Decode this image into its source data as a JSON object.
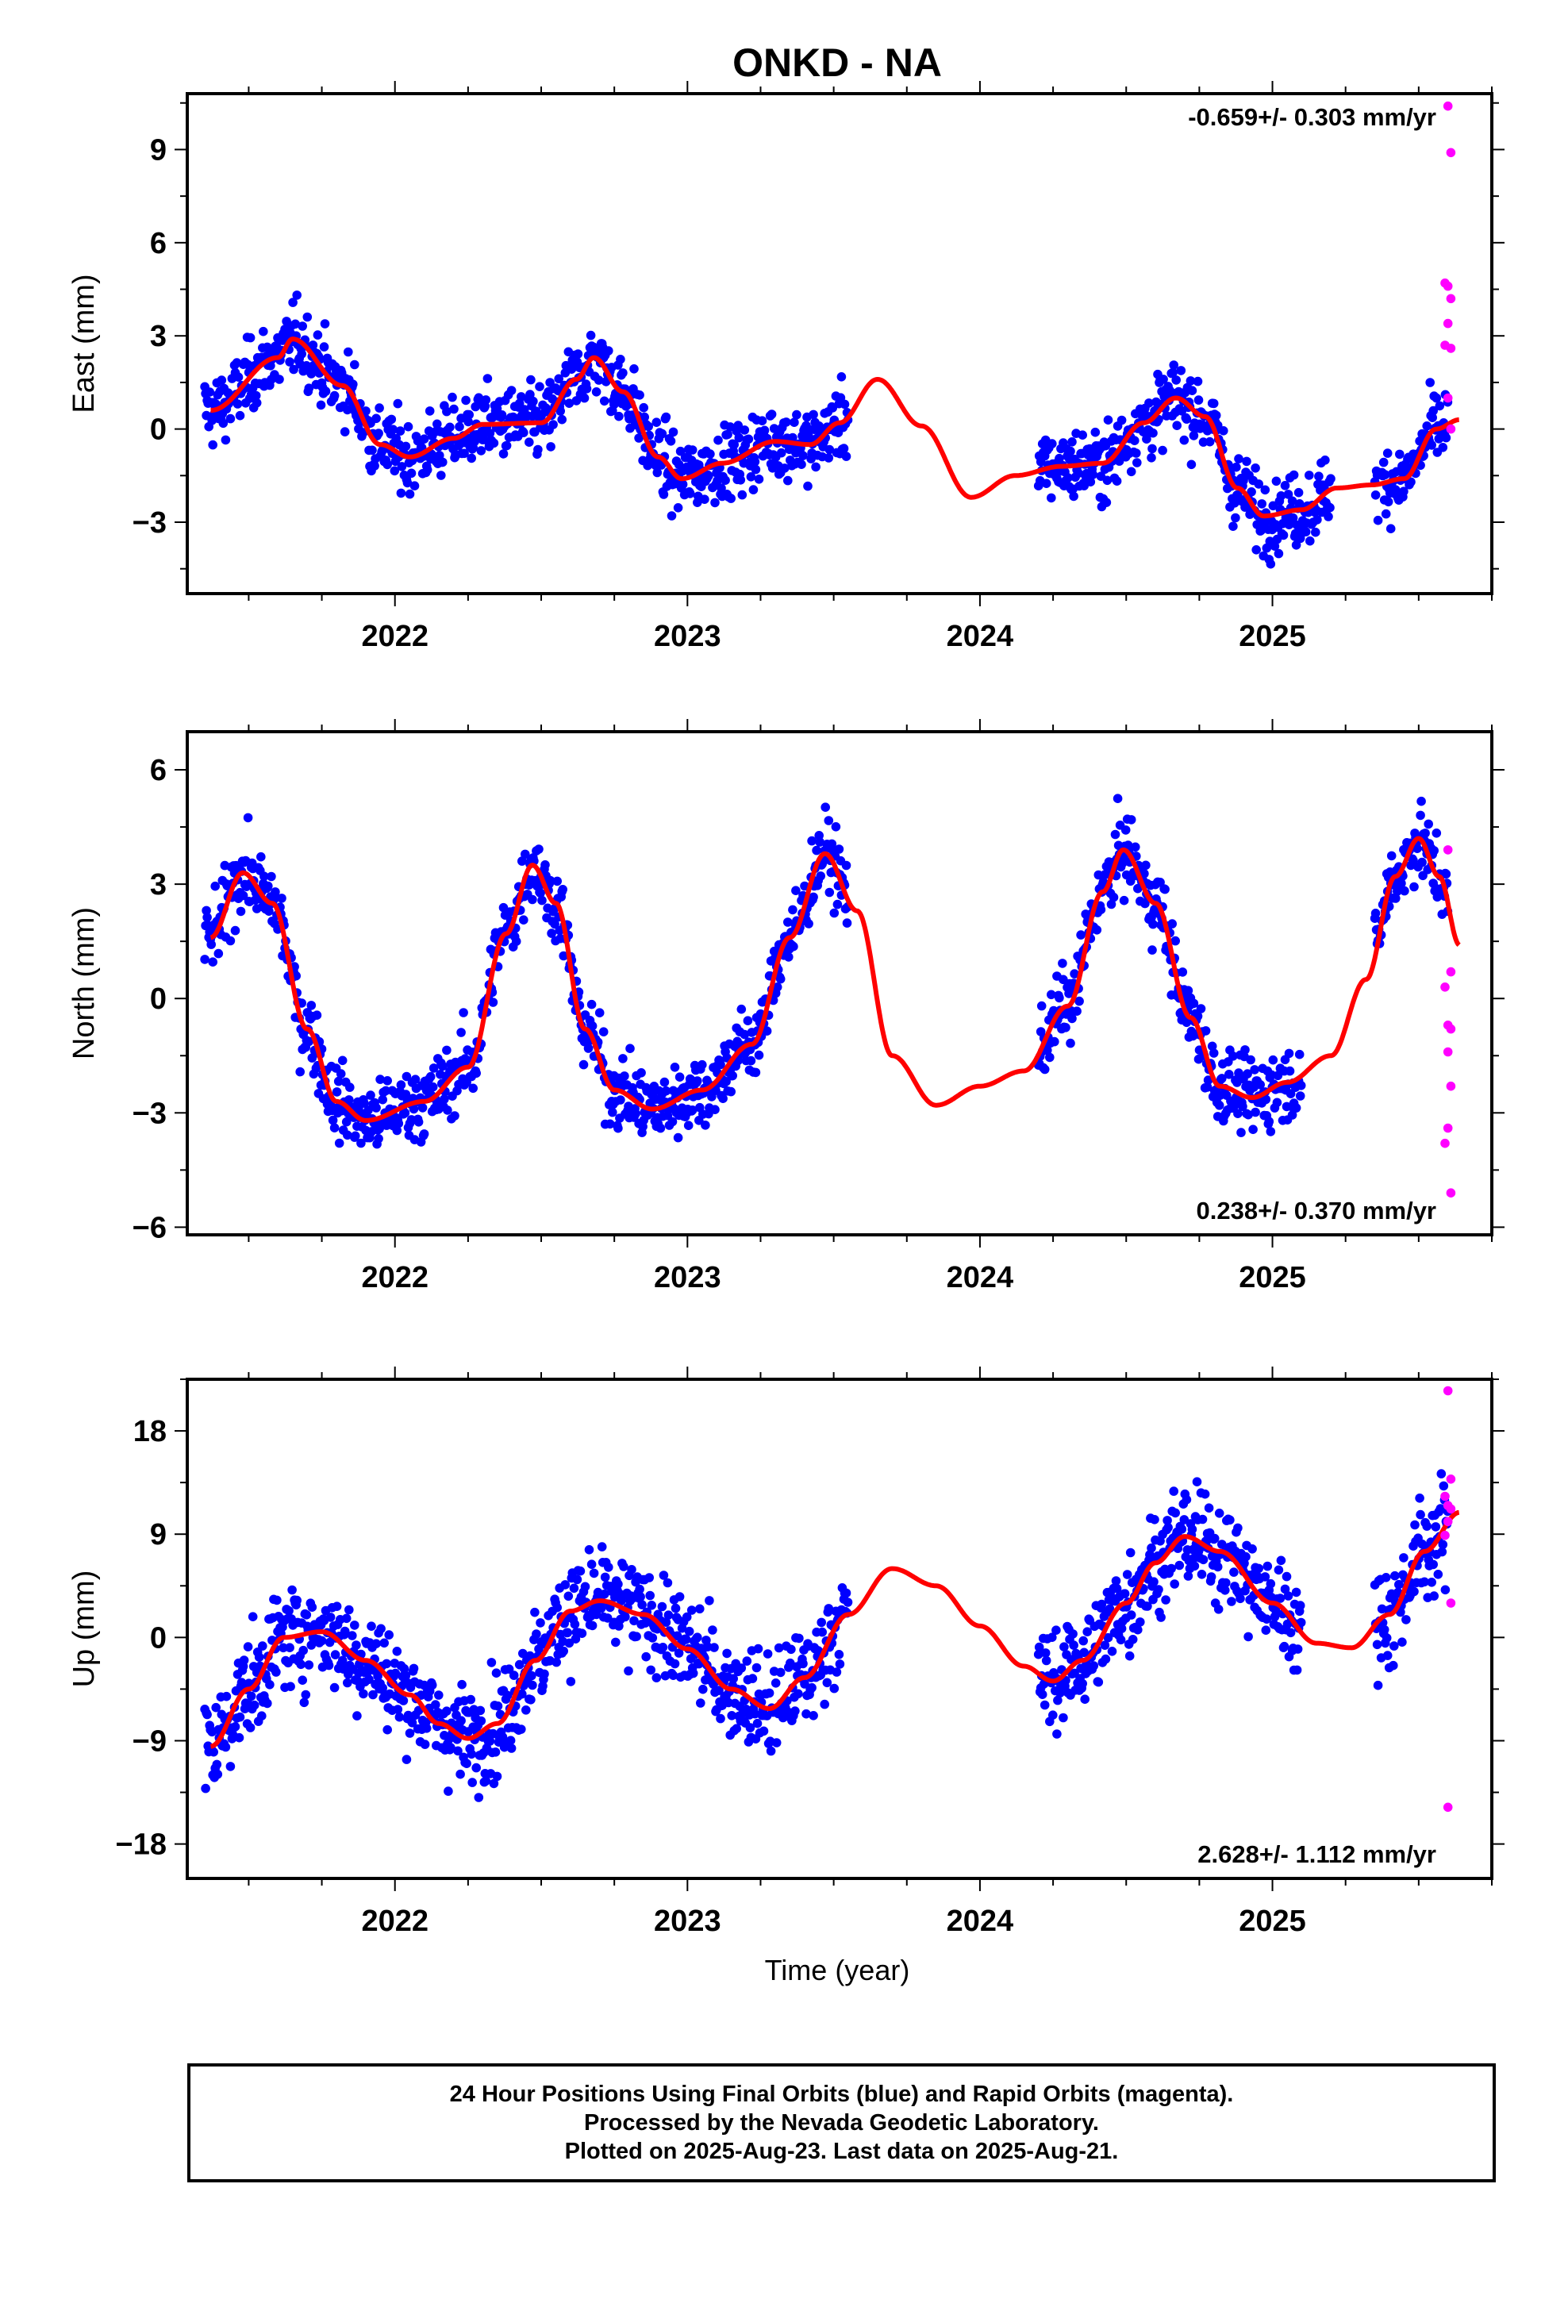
{
  "figure": {
    "title": "ONKD - NA",
    "xlabel": "Time (year)"
  },
  "colors": {
    "final": "#0000ff",
    "rapid": "#ff00ff",
    "model": "#ff0000",
    "frame": "#000000"
  },
  "footer": {
    "line1": "24 Hour Positions Using Final Orbits (blue) and Rapid Orbits (magenta).",
    "line2": "Processed by the Nevada Geodetic Laboratory.",
    "line3": "Plotted on 2025-Aug-23. Last data on 2025-Aug-21."
  },
  "chart_data": [
    {
      "type": "scatter",
      "name": "east",
      "ylabel": "East (mm)",
      "rate_text": "-0.659+/- 0.303 mm/yr",
      "rate_position": "top-right",
      "xlim": [
        2021.29,
        2025.75
      ],
      "ylim": [
        -5.3,
        10.8
      ],
      "xticks": [
        2022,
        2023,
        2024,
        2025
      ],
      "yticks": [
        -3,
        0,
        3,
        6,
        9
      ],
      "model_knots": [
        [
          2021.37,
          0.6
        ],
        [
          2021.6,
          2.3
        ],
        [
          2021.65,
          2.9
        ],
        [
          2021.82,
          1.4
        ],
        [
          2021.95,
          -0.5
        ],
        [
          2022.05,
          -0.9
        ],
        [
          2022.2,
          -0.3
        ],
        [
          2022.3,
          0.15
        ],
        [
          2022.5,
          0.2
        ],
        [
          2022.62,
          1.6
        ],
        [
          2022.68,
          2.3
        ],
        [
          2022.78,
          1.2
        ],
        [
          2022.9,
          -0.9
        ],
        [
          2022.98,
          -1.6
        ],
        [
          2023.12,
          -1.1
        ],
        [
          2023.3,
          -0.4
        ],
        [
          2023.42,
          -0.5
        ],
        [
          2023.52,
          0.2
        ],
        [
          2023.65,
          1.6
        ],
        [
          2023.8,
          0.1
        ],
        [
          2023.97,
          -2.2
        ],
        [
          2024.12,
          -1.5
        ],
        [
          2024.28,
          -1.2
        ],
        [
          2024.42,
          -1.1
        ],
        [
          2024.56,
          0.2
        ],
        [
          2024.67,
          1.0
        ],
        [
          2024.77,
          0.4
        ],
        [
          2024.88,
          -1.9
        ],
        [
          2024.97,
          -2.8
        ],
        [
          2025.1,
          -2.6
        ],
        [
          2025.22,
          -1.9
        ],
        [
          2025.34,
          -1.8
        ],
        [
          2025.45,
          -1.6
        ],
        [
          2025.56,
          0.0
        ],
        [
          2025.64,
          0.3
        ]
      ],
      "final_segments": [
        [
          2021.35,
          2023.55
        ],
        [
          2024.2,
          2025.2
        ],
        [
          2025.35,
          2025.6
        ]
      ],
      "scatter_sd": 0.9,
      "rapid_points": [
        [
          2025.6,
          10.4
        ],
        [
          2025.61,
          8.9
        ],
        [
          2025.59,
          4.7
        ],
        [
          2025.6,
          4.6
        ],
        [
          2025.61,
          4.2
        ],
        [
          2025.6,
          3.4
        ],
        [
          2025.59,
          2.7
        ],
        [
          2025.61,
          2.6
        ],
        [
          2025.6,
          1.0
        ],
        [
          2025.61,
          0.0
        ]
      ]
    },
    {
      "type": "scatter",
      "name": "north",
      "ylabel": "North (mm)",
      "rate_text": "0.238+/- 0.370 mm/yr",
      "rate_position": "bottom-right",
      "xlim": [
        2021.29,
        2025.75
      ],
      "ylim": [
        -6.2,
        7.0
      ],
      "xticks": [
        2022,
        2023,
        2024,
        2025
      ],
      "yticks": [
        -6,
        -3,
        0,
        3,
        6
      ],
      "model_knots": [
        [
          2021.37,
          1.6
        ],
        [
          2021.48,
          3.3
        ],
        [
          2021.58,
          2.5
        ],
        [
          2021.7,
          -0.8
        ],
        [
          2021.8,
          -2.7
        ],
        [
          2021.9,
          -3.2
        ],
        [
          2022.1,
          -2.7
        ],
        [
          2022.25,
          -1.8
        ],
        [
          2022.38,
          1.7
        ],
        [
          2022.47,
          3.5
        ],
        [
          2022.55,
          2.5
        ],
        [
          2022.65,
          -0.8
        ],
        [
          2022.75,
          -2.4
        ],
        [
          2022.88,
          -2.9
        ],
        [
          2023.05,
          -2.4
        ],
        [
          2023.22,
          -1.2
        ],
        [
          2023.35,
          1.6
        ],
        [
          2023.47,
          3.8
        ],
        [
          2023.58,
          2.3
        ],
        [
          2023.7,
          -1.5
        ],
        [
          2023.85,
          -2.8
        ],
        [
          2024.0,
          -2.3
        ],
        [
          2024.15,
          -1.9
        ],
        [
          2024.3,
          -0.2
        ],
        [
          2024.42,
          2.8
        ],
        [
          2024.49,
          3.9
        ],
        [
          2024.6,
          2.5
        ],
        [
          2024.72,
          -0.5
        ],
        [
          2024.82,
          -2.3
        ],
        [
          2024.93,
          -2.6
        ],
        [
          2025.05,
          -2.2
        ],
        [
          2025.2,
          -1.5
        ],
        [
          2025.32,
          0.5
        ],
        [
          2025.42,
          3.2
        ],
        [
          2025.5,
          4.2
        ],
        [
          2025.57,
          3.2
        ],
        [
          2025.64,
          1.4
        ]
      ],
      "final_segments": [
        [
          2021.35,
          2023.55
        ],
        [
          2024.2,
          2025.1
        ],
        [
          2025.35,
          2025.6
        ]
      ],
      "scatter_sd": 0.75,
      "rapid_points": [
        [
          2025.6,
          3.9
        ],
        [
          2025.61,
          0.7
        ],
        [
          2025.59,
          0.3
        ],
        [
          2025.6,
          -0.7
        ],
        [
          2025.61,
          -0.8
        ],
        [
          2025.6,
          -1.4
        ],
        [
          2025.61,
          -2.3
        ],
        [
          2025.6,
          -3.4
        ],
        [
          2025.59,
          -3.8
        ],
        [
          2025.61,
          -5.1
        ]
      ]
    },
    {
      "type": "scatter",
      "name": "up",
      "ylabel": "Up (mm)",
      "rate_text": "2.628+/- 1.112 mm/yr",
      "rate_position": "bottom-right",
      "xlim": [
        2021.29,
        2025.75
      ],
      "ylim": [
        -21,
        22.5
      ],
      "xticks": [
        2022,
        2023,
        2024,
        2025
      ],
      "yticks": [
        -18,
        -9,
        0,
        9,
        18
      ],
      "xlabel": "Time (year)",
      "model_knots": [
        [
          2021.37,
          -9.5
        ],
        [
          2021.5,
          -4.5
        ],
        [
          2021.62,
          0.0
        ],
        [
          2021.75,
          0.5
        ],
        [
          2021.9,
          -2.0
        ],
        [
          2022.05,
          -5.0
        ],
        [
          2022.15,
          -7.5
        ],
        [
          2022.25,
          -8.8
        ],
        [
          2022.35,
          -7.5
        ],
        [
          2022.48,
          -2.0
        ],
        [
          2022.6,
          2.3
        ],
        [
          2022.7,
          3.2
        ],
        [
          2022.85,
          2.0
        ],
        [
          2023.0,
          -1.0
        ],
        [
          2023.15,
          -4.5
        ],
        [
          2023.28,
          -6.2
        ],
        [
          2023.4,
          -3.5
        ],
        [
          2023.55,
          2.0
        ],
        [
          2023.7,
          6.0
        ],
        [
          2023.85,
          4.5
        ],
        [
          2024.0,
          1.0
        ],
        [
          2024.15,
          -2.5
        ],
        [
          2024.25,
          -3.8
        ],
        [
          2024.35,
          -2.0
        ],
        [
          2024.5,
          3.0
        ],
        [
          2024.6,
          6.5
        ],
        [
          2024.7,
          8.8
        ],
        [
          2024.82,
          7.5
        ],
        [
          2025.0,
          3.0
        ],
        [
          2025.15,
          -0.5
        ],
        [
          2025.27,
          -0.9
        ],
        [
          2025.4,
          2.0
        ],
        [
          2025.52,
          7.5
        ],
        [
          2025.64,
          10.9
        ]
      ],
      "final_segments": [
        [
          2021.35,
          2023.55
        ],
        [
          2024.2,
          2025.1
        ],
        [
          2025.35,
          2025.6
        ]
      ],
      "scatter_sd": 3.4,
      "rapid_points": [
        [
          2025.6,
          21.5
        ],
        [
          2025.61,
          13.8
        ],
        [
          2025.59,
          12.3
        ],
        [
          2025.6,
          11.5
        ],
        [
          2025.61,
          11.2
        ],
        [
          2025.6,
          10.1
        ],
        [
          2025.59,
          8.9
        ],
        [
          2025.61,
          3.0
        ],
        [
          2025.6,
          -14.8
        ]
      ]
    }
  ]
}
